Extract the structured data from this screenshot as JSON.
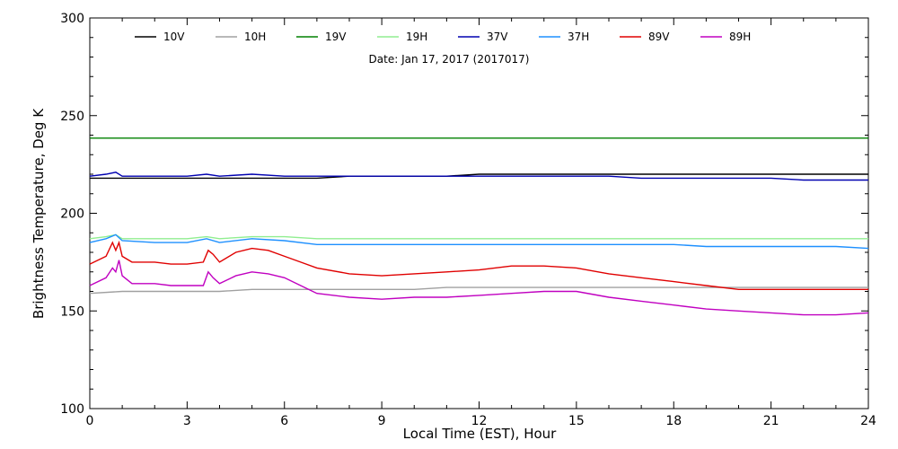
{
  "chart_data": {
    "type": "line",
    "xlabel": "Local Time (EST), Hour",
    "ylabel": "Brightness Temperature, Deg K",
    "annotation": "Date: Jan 17, 2017 (2017017)",
    "xlim": [
      0,
      24
    ],
    "ylim": [
      100,
      300
    ],
    "xticks": [
      "0",
      "3",
      "6",
      "9",
      "12",
      "15",
      "18",
      "21",
      "24"
    ],
    "yticks": [
      "100",
      "150",
      "200",
      "250",
      "300"
    ],
    "legend_position": "top",
    "grid": false,
    "series": [
      {
        "name": "10V",
        "color": "#000000",
        "x": [
          0,
          1,
          2,
          3,
          4,
          5,
          6,
          7,
          8,
          9,
          10,
          11,
          12,
          13,
          14,
          15,
          16,
          17,
          18,
          19,
          20,
          21,
          22,
          23,
          24
        ],
        "y": [
          218,
          218,
          218,
          218,
          218,
          218,
          218,
          218,
          219,
          219,
          219,
          219,
          220,
          220,
          220,
          220,
          220,
          220,
          220,
          220,
          220,
          220,
          220,
          220,
          220
        ]
      },
      {
        "name": "10H",
        "color": "#a0a0a0",
        "x": [
          0,
          1,
          2,
          3,
          4,
          5,
          6,
          7,
          8,
          9,
          10,
          11,
          12,
          13,
          14,
          15,
          16,
          17,
          18,
          19,
          20,
          21,
          22,
          23,
          24
        ],
        "y": [
          159,
          160,
          160,
          160,
          160,
          161,
          161,
          161,
          161,
          161,
          161,
          162,
          162,
          162,
          162,
          162,
          162,
          162,
          162,
          162,
          162,
          162,
          162,
          162,
          162
        ]
      },
      {
        "name": "19V",
        "color": "#008000",
        "x": [
          0,
          1,
          2,
          3,
          4,
          5,
          6,
          7,
          8,
          9,
          10,
          11,
          12,
          13,
          14,
          15,
          16,
          17,
          18,
          19,
          20,
          21,
          22,
          23,
          24
        ],
        "y": [
          238.5,
          238.5,
          238.5,
          238.5,
          238.5,
          238.5,
          238.5,
          238.5,
          238.5,
          238.5,
          238.5,
          238.5,
          238.5,
          238.5,
          238.5,
          238.5,
          238.5,
          238.5,
          238.5,
          238.5,
          238.5,
          238.5,
          238.5,
          238.5,
          238.5
        ]
      },
      {
        "name": "19H",
        "color": "#90ee90",
        "x": [
          0,
          0.5,
          0.8,
          1,
          2,
          3,
          3.6,
          4,
          5,
          6,
          7,
          8,
          9,
          10,
          11,
          12,
          13,
          14,
          15,
          16,
          17,
          18,
          19,
          20,
          21,
          22,
          23,
          24
        ],
        "y": [
          187,
          188,
          189,
          187,
          187,
          187,
          188,
          187,
          188,
          188,
          187,
          187,
          187,
          187,
          187,
          187,
          187,
          187,
          187,
          187,
          187,
          187,
          187,
          187,
          187,
          187,
          187,
          187
        ]
      },
      {
        "name": "37V",
        "color": "#0000b0",
        "x": [
          0,
          0.5,
          0.8,
          1,
          2,
          3,
          3.6,
          4,
          5,
          6,
          7,
          8,
          9,
          10,
          11,
          12,
          13,
          14,
          15,
          16,
          17,
          18,
          19,
          20,
          21,
          22,
          23,
          24
        ],
        "y": [
          219,
          220,
          221,
          219,
          219,
          219,
          220,
          219,
          220,
          219,
          219,
          219,
          219,
          219,
          219,
          219,
          219,
          219,
          219,
          219,
          218,
          218,
          218,
          218,
          218,
          217,
          217,
          217
        ]
      },
      {
        "name": "37H",
        "color": "#1e90ff",
        "x": [
          0,
          0.5,
          0.8,
          1,
          2,
          3,
          3.6,
          4,
          5,
          6,
          7,
          8,
          9,
          10,
          11,
          12,
          13,
          14,
          15,
          16,
          17,
          18,
          19,
          20,
          21,
          22,
          23,
          24
        ],
        "y": [
          185,
          187,
          189,
          186,
          185,
          185,
          187,
          185,
          187,
          186,
          184,
          184,
          184,
          184,
          184,
          184,
          184,
          184,
          184,
          184,
          184,
          184,
          183,
          183,
          183,
          183,
          183,
          182
        ]
      },
      {
        "name": "89V",
        "color": "#e00000",
        "x": [
          0,
          0.5,
          0.7,
          0.8,
          0.9,
          1,
          1.3,
          2,
          2.5,
          3,
          3.5,
          3.65,
          3.8,
          4,
          4.5,
          5,
          5.5,
          6,
          6.5,
          7,
          8,
          9,
          10,
          11,
          12,
          13,
          14,
          15,
          16,
          17,
          18,
          19,
          20,
          21,
          22,
          23,
          24
        ],
        "y": [
          174,
          178,
          185,
          181,
          185,
          178,
          175,
          175,
          174,
          174,
          175,
          181,
          179,
          175,
          180,
          182,
          181,
          178,
          175,
          172,
          169,
          168,
          169,
          170,
          171,
          173,
          173,
          172,
          169,
          167,
          165,
          163,
          161,
          161,
          161,
          161,
          161
        ]
      },
      {
        "name": "89H",
        "color": "#c000c0",
        "x": [
          0,
          0.5,
          0.7,
          0.8,
          0.9,
          1,
          1.3,
          2,
          2.5,
          3,
          3.5,
          3.65,
          3.8,
          4,
          4.5,
          5,
          5.5,
          6,
          6.5,
          7,
          8,
          9,
          10,
          11,
          12,
          13,
          14,
          15,
          16,
          17,
          18,
          19,
          20,
          21,
          22,
          23,
          24
        ],
        "y": [
          163,
          167,
          172,
          170,
          176,
          168,
          164,
          164,
          163,
          163,
          163,
          170,
          167,
          164,
          168,
          170,
          169,
          167,
          163,
          159,
          157,
          156,
          157,
          157,
          158,
          159,
          160,
          160,
          157,
          155,
          153,
          151,
          150,
          149,
          148,
          148,
          149
        ]
      }
    ]
  }
}
